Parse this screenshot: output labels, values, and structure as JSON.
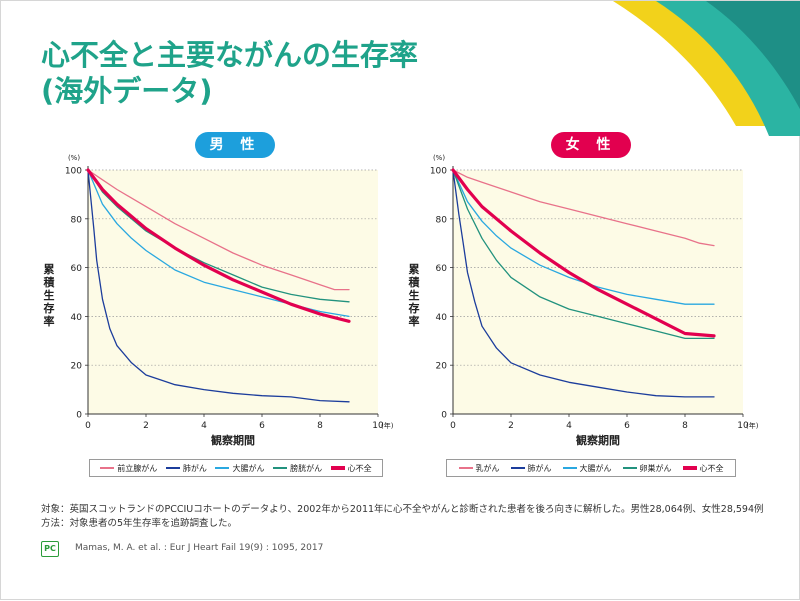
{
  "title": {
    "line1": "心不全と主要ながんの生存率",
    "line2": "(海外データ)"
  },
  "footnotes": {
    "line1": "対象：英国スコットランドのPCCIUコホートのデータより、2002年から2011年に心不全やがんと診断された患者を後ろ向きに解析した。男性28,064例、女性28,594例",
    "line2": "方法：対象患者の5年生存率を追跡調査した。"
  },
  "citation": "Mamas, M. A. et al. : Eur J Heart Fail 19(9) : 1095, 2017",
  "logo": {
    "text": "PC",
    "color": "#2b9c3a"
  },
  "colors": {
    "title": "#1fa38a",
    "male_badge": "#1d9fdc",
    "female_badge": "#e2004f",
    "plot_bg": "#fdfbe6",
    "deco_yellow": "#f2d21b",
    "deco_teal": "#2bb4a3"
  },
  "chart_data": [
    {
      "type": "line",
      "panel_label": "男 性",
      "xlabel": "観察期間",
      "ylabel": "累積生存率",
      "x_unit": "(年)",
      "y_unit": "(%)",
      "xlim": [
        0,
        10
      ],
      "ylim": [
        0,
        100
      ],
      "xticks": [
        0,
        2,
        4,
        6,
        8,
        10
      ],
      "yticks": [
        0,
        20,
        40,
        60,
        80,
        100
      ],
      "grid": "horizontal dotted",
      "legend_position": "bottom",
      "series": [
        {
          "name": "前立腺がん",
          "color": "#e8728a",
          "width": 1.3,
          "points": [
            [
              0,
              100
            ],
            [
              0.5,
              96
            ],
            [
              1,
              92
            ],
            [
              2,
              85
            ],
            [
              3,
              78
            ],
            [
              4,
              72
            ],
            [
              5,
              66
            ],
            [
              6,
              61
            ],
            [
              7,
              57
            ],
            [
              8,
              53
            ],
            [
              8.5,
              51
            ],
            [
              9,
              51
            ]
          ]
        },
        {
          "name": "肺がん",
          "color": "#1c3d9c",
          "width": 1.3,
          "points": [
            [
              0,
              100
            ],
            [
              0.1,
              88
            ],
            [
              0.2,
              76
            ],
            [
              0.3,
              63
            ],
            [
              0.5,
              47
            ],
            [
              0.75,
              35
            ],
            [
              1,
              28
            ],
            [
              1.5,
              21
            ],
            [
              2,
              16
            ],
            [
              3,
              12
            ],
            [
              4,
              10
            ],
            [
              5,
              8.5
            ],
            [
              6,
              7.5
            ],
            [
              7,
              7
            ],
            [
              8,
              5.5
            ],
            [
              9,
              5
            ]
          ]
        },
        {
          "name": "大腸がん",
          "color": "#2aa8e0",
          "width": 1.3,
          "points": [
            [
              0,
              100
            ],
            [
              0.5,
              86
            ],
            [
              1,
              78
            ],
            [
              1.5,
              72
            ],
            [
              2,
              67
            ],
            [
              3,
              59
            ],
            [
              4,
              54
            ],
            [
              5,
              51
            ],
            [
              6,
              48
            ],
            [
              7,
              45
            ],
            [
              8,
              42
            ],
            [
              9,
              40
            ]
          ]
        },
        {
          "name": "膀胱がん",
          "color": "#22927e",
          "width": 1.3,
          "points": [
            [
              0,
              100
            ],
            [
              0.5,
              91
            ],
            [
              1,
              85
            ],
            [
              2,
              75
            ],
            [
              3,
              68
            ],
            [
              4,
              62
            ],
            [
              5,
              57
            ],
            [
              6,
              52
            ],
            [
              7,
              49
            ],
            [
              7.5,
              48
            ],
            [
              8,
              47
            ],
            [
              9,
              46
            ]
          ]
        },
        {
          "name": "心不全",
          "color": "#e2004f",
          "width": 3.2,
          "points": [
            [
              0,
              100
            ],
            [
              0.5,
              92
            ],
            [
              1,
              86
            ],
            [
              2,
              76
            ],
            [
              3,
              68
            ],
            [
              4,
              61
            ],
            [
              5,
              55
            ],
            [
              6,
              50
            ],
            [
              7,
              45
            ],
            [
              8,
              41
            ],
            [
              9,
              38
            ]
          ]
        }
      ]
    },
    {
      "type": "line",
      "panel_label": "女 性",
      "xlabel": "観察期間",
      "ylabel": "累積生存率",
      "x_unit": "(年)",
      "y_unit": "(%)",
      "xlim": [
        0,
        10
      ],
      "ylim": [
        0,
        100
      ],
      "xticks": [
        0,
        2,
        4,
        6,
        8,
        10
      ],
      "yticks": [
        0,
        20,
        40,
        60,
        80,
        100
      ],
      "grid": "horizontal dotted",
      "legend_position": "bottom",
      "series": [
        {
          "name": "乳がん",
          "color": "#e8728a",
          "width": 1.3,
          "points": [
            [
              0,
              100
            ],
            [
              0.5,
              97
            ],
            [
              1,
              95
            ],
            [
              2,
              91
            ],
            [
              3,
              87
            ],
            [
              4,
              84
            ],
            [
              5,
              81
            ],
            [
              6,
              78
            ],
            [
              7,
              75
            ],
            [
              8,
              72
            ],
            [
              8.5,
              70
            ],
            [
              9,
              69
            ]
          ]
        },
        {
          "name": "肺がん",
          "color": "#1c3d9c",
          "width": 1.3,
          "points": [
            [
              0,
              100
            ],
            [
              0.1,
              91
            ],
            [
              0.2,
              82
            ],
            [
              0.35,
              70
            ],
            [
              0.5,
              58
            ],
            [
              0.75,
              46
            ],
            [
              1,
              36
            ],
            [
              1.5,
              27
            ],
            [
              2,
              21
            ],
            [
              3,
              16
            ],
            [
              4,
              13
            ],
            [
              5,
              11
            ],
            [
              6,
              9
            ],
            [
              7,
              7.5
            ],
            [
              8,
              7
            ],
            [
              9,
              7
            ]
          ]
        },
        {
          "name": "大腸がん",
          "color": "#2aa8e0",
          "width": 1.3,
          "points": [
            [
              0,
              100
            ],
            [
              0.5,
              87
            ],
            [
              1,
              79
            ],
            [
              1.5,
              73
            ],
            [
              2,
              68
            ],
            [
              3,
              61
            ],
            [
              4,
              56
            ],
            [
              5,
              52
            ],
            [
              6,
              49
            ],
            [
              7,
              47
            ],
            [
              8,
              45
            ],
            [
              9,
              45
            ]
          ]
        },
        {
          "name": "卵巣がん",
          "color": "#22927e",
          "width": 1.3,
          "points": [
            [
              0,
              100
            ],
            [
              0.5,
              84
            ],
            [
              1,
              72
            ],
            [
              1.5,
              63
            ],
            [
              2,
              56
            ],
            [
              3,
              48
            ],
            [
              4,
              43
            ],
            [
              5,
              40
            ],
            [
              6,
              37
            ],
            [
              7,
              34
            ],
            [
              8,
              31
            ],
            [
              9,
              31
            ]
          ]
        },
        {
          "name": "心不全",
          "color": "#e2004f",
          "width": 3.2,
          "points": [
            [
              0,
              100
            ],
            [
              0.5,
              92
            ],
            [
              1,
              85
            ],
            [
              2,
              75
            ],
            [
              3,
              66
            ],
            [
              4,
              58
            ],
            [
              5,
              51
            ],
            [
              6,
              45
            ],
            [
              7,
              39
            ],
            [
              7.5,
              36
            ],
            [
              8,
              33
            ],
            [
              9,
              32
            ]
          ]
        }
      ]
    }
  ]
}
